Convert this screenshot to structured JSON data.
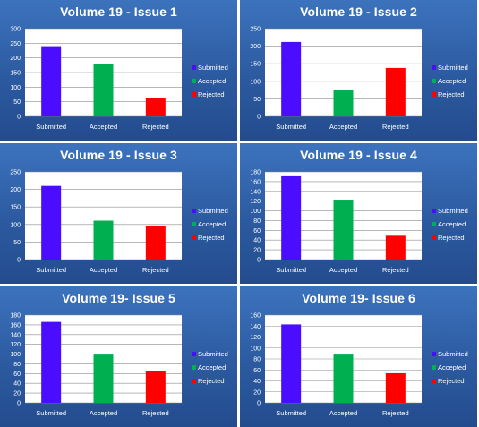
{
  "colors": {
    "Submitted": "#4b0dff",
    "Accepted": "#00b050",
    "Rejected": "#ff0000",
    "panel_bg": "#2c5aa0",
    "plot_bg": "#ffffff",
    "gridline": "#8c8c8c"
  },
  "chart_data": [
    {
      "type": "bar",
      "title": "Volume 19 - Issue 1",
      "categories": [
        "Submitted",
        "Accepted",
        "Rejected"
      ],
      "values": [
        240,
        180,
        62
      ],
      "ylim": [
        0,
        300
      ],
      "yticks": [
        0,
        50,
        100,
        150,
        200,
        250,
        300
      ],
      "legend": [
        "Submitted",
        "Accepted",
        "Rejected"
      ],
      "legend_position": "right",
      "grid": true
    },
    {
      "type": "bar",
      "title": "Volume 19 - Issue 2",
      "categories": [
        "Submitted",
        "Accepted",
        "Rejected"
      ],
      "values": [
        212,
        74,
        138
      ],
      "ylim": [
        0,
        250
      ],
      "yticks": [
        0,
        50,
        100,
        150,
        200,
        250
      ],
      "legend": [
        "Submitted",
        "Accepted",
        "Rejected"
      ],
      "legend_position": "right",
      "grid": true
    },
    {
      "type": "bar",
      "title": "Volume 19 - Issue 3",
      "categories": [
        "Submitted",
        "Accepted",
        "Rejected"
      ],
      "values": [
        210,
        111,
        97
      ],
      "ylim": [
        0,
        250
      ],
      "yticks": [
        0,
        50,
        100,
        150,
        200,
        250
      ],
      "legend": [
        "Submitted",
        "Accepted",
        "Rejected"
      ],
      "legend_position": "right",
      "grid": true
    },
    {
      "type": "bar",
      "title": "Volume 19 - Issue 4",
      "categories": [
        "Submitted",
        "Accepted",
        "Rejected"
      ],
      "values": [
        171,
        123,
        49
      ],
      "ylim": [
        0,
        180
      ],
      "yticks": [
        0,
        20,
        40,
        60,
        80,
        100,
        120,
        140,
        160,
        180
      ],
      "legend": [
        "Submitted",
        "Accepted",
        "Rejected"
      ],
      "legend_position": "right",
      "grid": true
    },
    {
      "type": "bar",
      "title": "Volume 19- Issue 5",
      "categories": [
        "Submitted",
        "Accepted",
        "Rejected"
      ],
      "values": [
        166,
        99,
        66
      ],
      "ylim": [
        0,
        180
      ],
      "yticks": [
        0,
        20,
        40,
        60,
        80,
        100,
        120,
        140,
        160,
        180
      ],
      "legend": [
        "Submitted",
        "Accepted",
        "Rejected"
      ],
      "legend_position": "right",
      "grid": true
    },
    {
      "type": "bar",
      "title": "Volume 19- Issue 6",
      "categories": [
        "Submitted",
        "Accepted",
        "Rejected"
      ],
      "values": [
        143,
        88,
        54
      ],
      "ylim": [
        0,
        160
      ],
      "yticks": [
        0,
        20,
        40,
        60,
        80,
        100,
        120,
        140,
        160
      ],
      "legend": [
        "Submitted",
        "Accepted",
        "Rejected"
      ],
      "legend_position": "right",
      "grid": true
    }
  ]
}
